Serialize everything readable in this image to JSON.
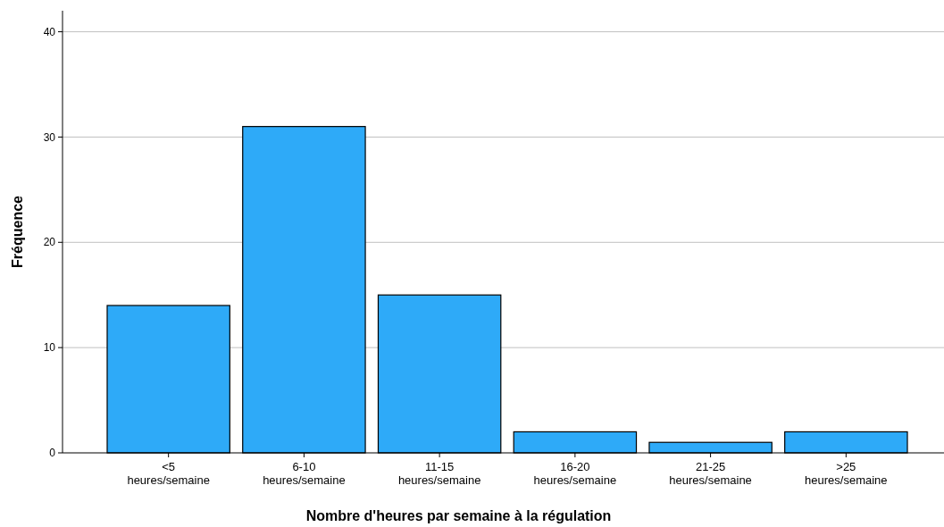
{
  "chart_data": {
    "type": "bar",
    "xlabel": "Nombre d'heures par semaine à la régulation",
    "ylabel": "Fréquence",
    "categories": [
      "<5\nheures/semaine",
      "6-10\nheures/semaine",
      "11-15\nheures/semaine",
      "16-20\nheures/semaine",
      "21-25\nheures/semaine",
      ">25\nheures/semaine"
    ],
    "values": [
      14,
      31,
      15,
      2,
      1,
      2
    ],
    "color": "#2eaaf8",
    "ylim": [
      0,
      42
    ],
    "yticks": [
      0,
      10,
      20,
      30,
      40
    ],
    "grid": "y"
  }
}
